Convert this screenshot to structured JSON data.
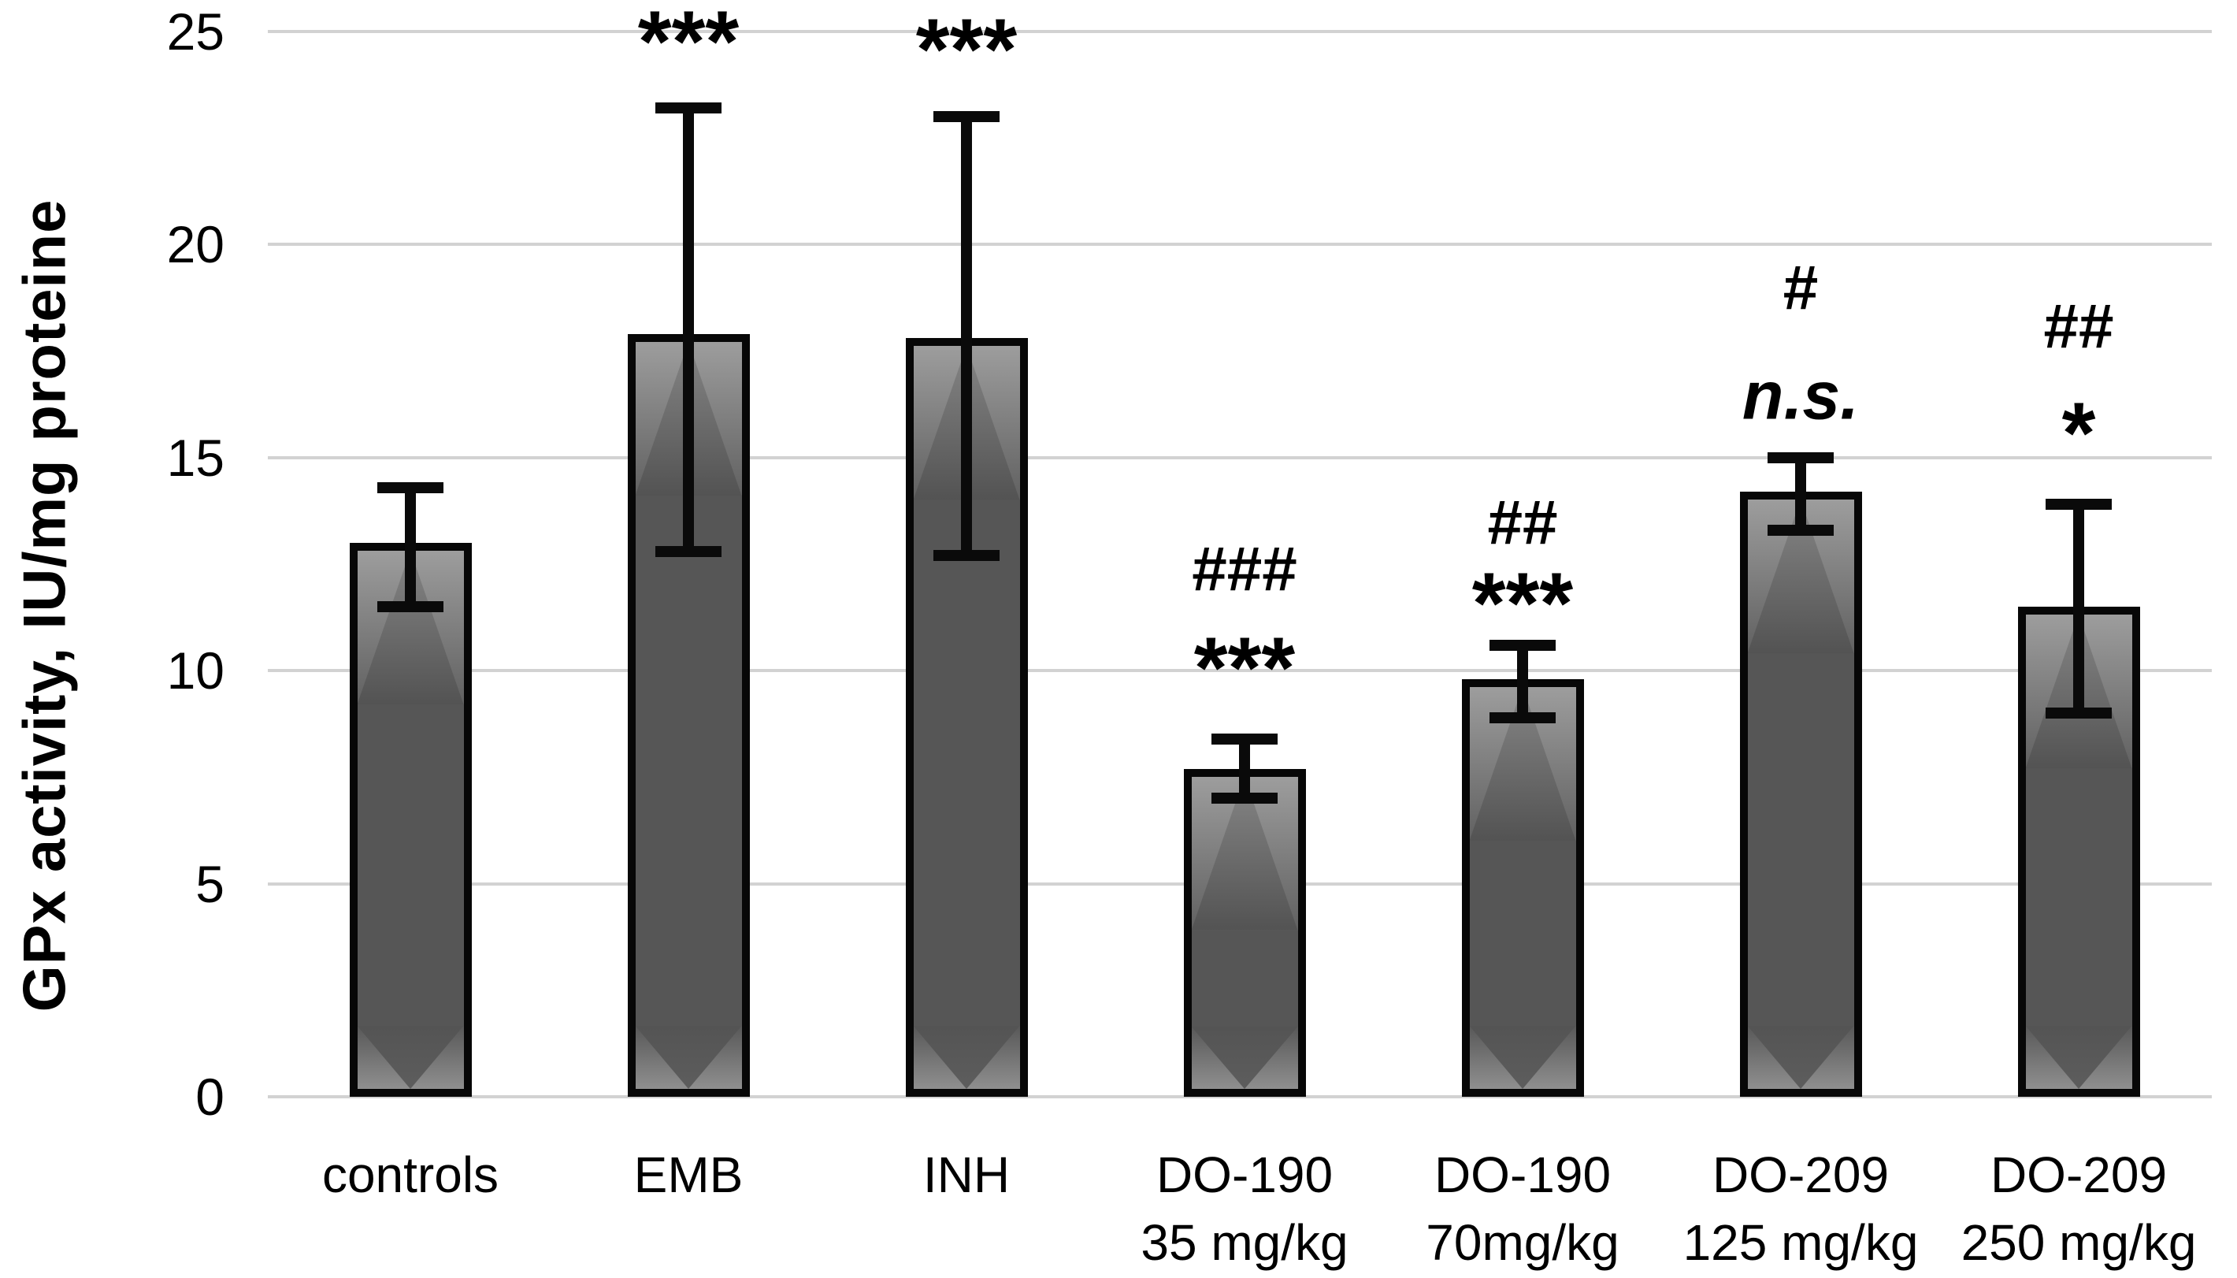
{
  "chart_data": {
    "type": "bar",
    "title": "",
    "xlabel": "",
    "ylabel": "GPx activity, IU/mg proteine",
    "ylim": [
      0,
      25
    ],
    "yticks": [
      0,
      5,
      10,
      15,
      20,
      25
    ],
    "grid": true,
    "legend": "none",
    "colors": {
      "bar_fill": "#565656",
      "bar_border": "#070707",
      "bevel_highlight": "#9d9d9d",
      "gridline": "#d2d2d2",
      "error_bar": "#0a0a0a",
      "background": "#ffffff",
      "text": "#000000"
    },
    "categories": [
      [
        "controls"
      ],
      [
        "EMB"
      ],
      [
        "INH"
      ],
      [
        "DO-190",
        "35 mg/kg"
      ],
      [
        "DO-190",
        "70mg/kg"
      ],
      [
        "DO-209",
        "125 mg/kg"
      ],
      [
        "DO-209",
        "250 mg/kg"
      ]
    ],
    "series": [
      {
        "name": "GPx activity, IU/mg proteine",
        "values": [
          13.0,
          17.9,
          17.8,
          7.7,
          9.8,
          14.2,
          11.5
        ],
        "error_upper": [
          14.3,
          23.2,
          23.0,
          8.4,
          10.6,
          15.0,
          13.9
        ],
        "error_lower": [
          11.5,
          12.8,
          12.7,
          7.0,
          8.9,
          13.3,
          9.0
        ]
      }
    ],
    "annotations": [
      {
        "bar": 1,
        "lines": [
          {
            "text": "***",
            "kind": "stars",
            "value": 25.1
          }
        ]
      },
      {
        "bar": 2,
        "lines": [
          {
            "text": "***",
            "kind": "stars",
            "value": 24.9
          }
        ]
      },
      {
        "bar": 3,
        "lines": [
          {
            "text": "###",
            "kind": "hash",
            "value": 12.5
          },
          {
            "text": "***",
            "kind": "stars",
            "value": 10.4
          }
        ]
      },
      {
        "bar": 4,
        "lines": [
          {
            "text": "##",
            "kind": "hash",
            "value": 13.6
          },
          {
            "text": "***",
            "kind": "stars",
            "value": 11.9
          }
        ]
      },
      {
        "bar": 5,
        "lines": [
          {
            "text": "#",
            "kind": "hash",
            "value": 19.1
          },
          {
            "text": "n.s.",
            "kind": "ns",
            "value": 16.5
          }
        ]
      },
      {
        "bar": 6,
        "lines": [
          {
            "text": "##",
            "kind": "hash",
            "value": 18.2
          },
          {
            "text": "*",
            "kind": "stars",
            "value": 15.9
          }
        ]
      }
    ]
  }
}
